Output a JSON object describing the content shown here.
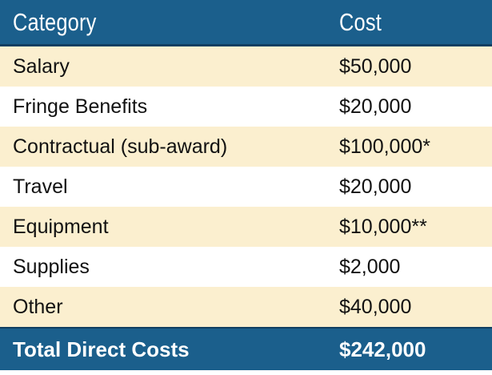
{
  "table": {
    "header": {
      "category": "Category",
      "cost": "Cost"
    },
    "rows": [
      {
        "category": "Salary",
        "cost": "$50,000"
      },
      {
        "category": "Fringe Benefits",
        "cost": "$20,000"
      },
      {
        "category": "Contractual (sub-award)",
        "cost": "$100,000*"
      },
      {
        "category": "Travel",
        "cost": "$20,000"
      },
      {
        "category": "Equipment",
        "cost": "$10,000**"
      },
      {
        "category": "Supplies",
        "cost": "$2,000"
      },
      {
        "category": "Other",
        "cost": "$40,000"
      }
    ],
    "total": {
      "category": "Total Direct Costs",
      "cost": "$242,000"
    }
  },
  "colors": {
    "header_bg": "#1b5f8c",
    "row_alt_bg": "#fbefcf",
    "row_plain_bg": "#ffffff",
    "header_text": "#ffffff"
  }
}
